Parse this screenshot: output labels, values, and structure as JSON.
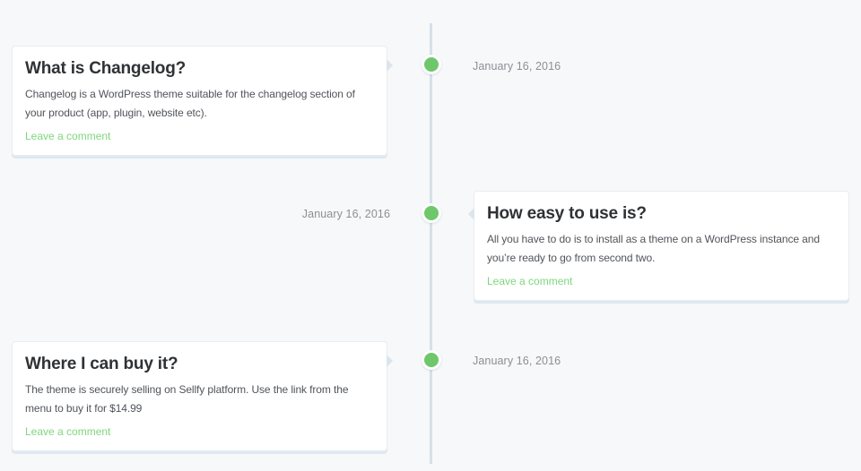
{
  "colors": {
    "background": "#f7f8f9",
    "line": "#d5e0ea",
    "dot_green": "#6ec86b",
    "link_green": "#7ed67e",
    "heading": "#2f3235",
    "body_text": "#50545a",
    "date_text": "#8a9096",
    "card_background": "#ffffff",
    "card_border": "#e9edf1",
    "card_shadow": "#dfe8f0",
    "arrow": "#dbe5ee"
  },
  "timeline": {
    "entries": [
      {
        "side": "left",
        "date": "January 16, 2016",
        "title": "What is Changelog?",
        "body": "Changelog is a WordPress theme suitable for the changelog section of your product (app, plugin, website etc).",
        "link_label": "Leave a comment"
      },
      {
        "side": "right",
        "date": "January 16, 2016",
        "title": "How easy to use is?",
        "body": "All you have to do is to install as a theme on a WordPress instance and you’re ready to go from second two.",
        "link_label": "Leave a comment"
      },
      {
        "side": "left",
        "date": "January 16, 2016",
        "title": "Where I can buy it?",
        "body": "The theme is securely selling on Sellfy platform. Use the link from the menu to buy it for $14.99",
        "link_label": "Leave a comment"
      }
    ]
  }
}
